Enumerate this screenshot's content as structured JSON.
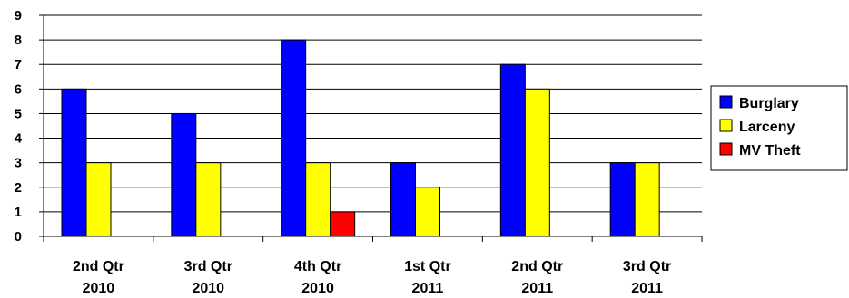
{
  "chart_data": {
    "type": "bar",
    "title": "",
    "xlabel": "",
    "ylabel": "",
    "ylim": [
      0,
      9
    ],
    "yticks": [
      0,
      1,
      2,
      3,
      4,
      5,
      6,
      7,
      8,
      9
    ],
    "grid": true,
    "legend_position": "right",
    "categories": [
      [
        "2nd Qtr",
        "2010"
      ],
      [
        "3rd Qtr",
        "2010"
      ],
      [
        "4th Qtr",
        "2010"
      ],
      [
        "1st Qtr",
        "2011"
      ],
      [
        "2nd Qtr",
        "2011"
      ],
      [
        "3rd Qtr",
        "2011"
      ]
    ],
    "series": [
      {
        "name": "Burglary",
        "color": "#0000ff",
        "values": [
          6,
          5,
          8,
          3,
          7,
          3
        ]
      },
      {
        "name": "Larceny",
        "color": "#ffff00",
        "values": [
          3,
          3,
          3,
          2,
          6,
          3
        ]
      },
      {
        "name": "MV Theft",
        "color": "#ff0000",
        "values": [
          0,
          0,
          1,
          0,
          0,
          0
        ]
      }
    ]
  }
}
